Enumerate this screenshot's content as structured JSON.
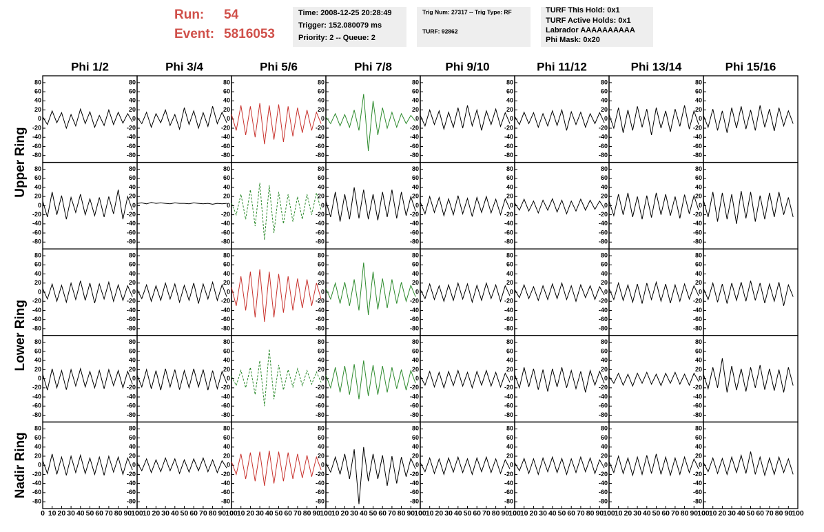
{
  "header": {
    "run_label": "Run:",
    "run": "54",
    "event_label": "Event:",
    "event": "5816053",
    "box1": [
      "Time: 2008-12-25 20:28:49",
      "Trigger: 152.080079 ms",
      "Priority: 2 -- Queue: 2"
    ],
    "box2": [
      "Trig Num: 27317 -- Trig Type: RF",
      "TURF: 92862"
    ],
    "box3": [
      "TURF This Hold: 0x1",
      "TURF Active Holds: 0x1",
      "Labrador AAAAAAAAAA",
      "Phi Mask: 0x20"
    ]
  },
  "chart_data": {
    "type": "line",
    "columns": [
      "Phi 1/2",
      "Phi 3/4",
      "Phi 5/6",
      "Phi 7/8",
      "Phi 9/10",
      "Phi 11/12",
      "Phi 13/14",
      "Phi 15/16"
    ],
    "row_labels": [
      "Upper Ring",
      "Lower Ring",
      "Nadir Ring"
    ],
    "xlim": [
      0,
      100
    ],
    "xticks": [
      0,
      10,
      20,
      30,
      40,
      50,
      60,
      70,
      80,
      90,
      100
    ],
    "ylim": [
      -95,
      95
    ],
    "yticks": [
      -80,
      -60,
      -40,
      -20,
      0,
      20,
      40,
      60,
      80
    ],
    "x": [
      0,
      5,
      10,
      15,
      20,
      25,
      30,
      35,
      40,
      45,
      50,
      55,
      60,
      65,
      70,
      75,
      80,
      85,
      90,
      95
    ],
    "panels": [
      [
        {
          "color": "#000000",
          "values": [
            5,
            -12,
            18,
            -8,
            14,
            -20,
            10,
            -15,
            22,
            -10,
            16,
            -18,
            8,
            -14,
            20,
            -12,
            15,
            -9,
            12,
            -6
          ]
        },
        {
          "color": "#000000",
          "values": [
            4,
            -10,
            15,
            -18,
            12,
            -8,
            20,
            -14,
            10,
            -22,
            25,
            -12,
            18,
            -20,
            14,
            -16,
            28,
            -10,
            15,
            -8
          ]
        },
        {
          "color": "#c8322d",
          "values": [
            10,
            -25,
            30,
            -35,
            28,
            -40,
            35,
            -55,
            30,
            -45,
            32,
            -50,
            28,
            -38,
            25,
            -30,
            20,
            -25,
            15,
            -10
          ]
        },
        {
          "color": "#2e8b2e",
          "values": [
            5,
            -10,
            12,
            -15,
            10,
            -18,
            20,
            -25,
            55,
            -70,
            40,
            -35,
            25,
            -20,
            15,
            -18,
            12,
            -10,
            8,
            -5
          ]
        },
        {
          "color": "#000000",
          "values": [
            8,
            -15,
            20,
            -12,
            18,
            -22,
            15,
            -18,
            25,
            -20,
            30,
            -15,
            20,
            -25,
            18,
            -12,
            22,
            -16,
            14,
            -10
          ]
        },
        {
          "color": "#000000",
          "values": [
            6,
            -12,
            15,
            -10,
            14,
            -18,
            12,
            -15,
            18,
            -14,
            20,
            -25,
            16,
            -12,
            15,
            -18,
            12,
            -10,
            14,
            -8
          ]
        },
        {
          "color": "#000000",
          "values": [
            10,
            -20,
            25,
            -30,
            20,
            -25,
            28,
            -18,
            22,
            -35,
            25,
            -20,
            18,
            -28,
            22,
            -16,
            30,
            -22,
            18,
            -12
          ]
        },
        {
          "color": "#000000",
          "values": [
            8,
            -18,
            22,
            -25,
            18,
            -30,
            25,
            -20,
            28,
            -22,
            20,
            -25,
            30,
            -18,
            22,
            -26,
            25,
            -15,
            18,
            -10
          ]
        }
      ],
      [
        {
          "color": "#000000",
          "values": [
            10,
            -25,
            30,
            -20,
            22,
            -30,
            18,
            -15,
            25,
            -20,
            15,
            -22,
            18,
            -25,
            20,
            -18,
            35,
            -30,
            20,
            -10
          ]
        },
        {
          "color": "#000000",
          "values": [
            5,
            6,
            4,
            7,
            5,
            6,
            5,
            4,
            6,
            5,
            5,
            4,
            6,
            5,
            4,
            5,
            3,
            5,
            4,
            5
          ]
        },
        {
          "color": "#2e8b2e",
          "dashed": true,
          "values": [
            5,
            -20,
            25,
            -30,
            35,
            -45,
            50,
            -75,
            45,
            -60,
            30,
            -40,
            25,
            -35,
            20,
            -30,
            25,
            -20,
            28,
            -10
          ]
        },
        {
          "color": "#000000",
          "values": [
            10,
            -25,
            30,
            -35,
            25,
            -30,
            40,
            -28,
            35,
            -30,
            25,
            -32,
            30,
            -25,
            35,
            -28,
            30,
            -22,
            20,
            -12
          ]
        },
        {
          "color": "#000000",
          "values": [
            8,
            -18,
            20,
            -15,
            18,
            -22,
            15,
            -20,
            22,
            -18,
            16,
            -24,
            18,
            -15,
            20,
            -16,
            14,
            -20,
            15,
            -8
          ]
        },
        {
          "color": "#000000",
          "values": [
            6,
            -10,
            14,
            -12,
            10,
            -16,
            12,
            -10,
            15,
            -14,
            12,
            -18,
            10,
            -12,
            14,
            -10,
            12,
            -8,
            10,
            -6
          ]
        },
        {
          "color": "#000000",
          "values": [
            10,
            -22,
            25,
            -20,
            28,
            -25,
            20,
            -30,
            22,
            -26,
            28,
            -20,
            25,
            -22,
            20,
            -28,
            24,
            -18,
            22,
            -10
          ]
        },
        {
          "color": "#000000",
          "values": [
            12,
            -25,
            30,
            -35,
            28,
            -30,
            25,
            -40,
            32,
            -28,
            30,
            -35,
            22,
            -30,
            28,
            -25,
            30,
            -20,
            18,
            -25
          ]
        }
      ],
      [
        {
          "color": "#000000",
          "values": [
            8,
            -15,
            18,
            -20,
            15,
            -22,
            20,
            -16,
            25,
            -18,
            20,
            -24,
            18,
            -15,
            22,
            -20,
            16,
            -18,
            14,
            -10
          ]
        },
        {
          "color": "#000000",
          "values": [
            6,
            -14,
            16,
            -20,
            14,
            -18,
            20,
            -15,
            18,
            -22,
            15,
            -18,
            20,
            -25,
            18,
            -15,
            22,
            -18,
            16,
            -10
          ]
        },
        {
          "color": "#c8322d",
          "values": [
            10,
            -30,
            35,
            -40,
            45,
            -55,
            50,
            -65,
            45,
            -55,
            40,
            -45,
            35,
            -40,
            30,
            -35,
            28,
            -30,
            20,
            -15
          ]
        },
        {
          "color": "#2e8b2e",
          "values": [
            8,
            -15,
            20,
            -25,
            22,
            -30,
            28,
            -40,
            65,
            -50,
            45,
            -38,
            30,
            -35,
            28,
            -25,
            22,
            -20,
            15,
            -10
          ]
        },
        {
          "color": "#000000",
          "values": [
            6,
            -14,
            18,
            -16,
            14,
            -20,
            16,
            -18,
            20,
            -15,
            18,
            -22,
            15,
            -18,
            20,
            -14,
            16,
            -20,
            14,
            -8
          ]
        },
        {
          "color": "#000000",
          "values": [
            6,
            -12,
            16,
            -14,
            12,
            -18,
            14,
            -16,
            18,
            -14,
            20,
            -16,
            14,
            -20,
            16,
            -12,
            14,
            -16,
            12,
            -6
          ]
        },
        {
          "color": "#000000",
          "values": [
            8,
            -16,
            20,
            -18,
            16,
            -22,
            18,
            -25,
            20,
            -16,
            22,
            -20,
            18,
            -24,
            16,
            -20,
            18,
            -15,
            14,
            -8
          ]
        },
        {
          "color": "#000000",
          "values": [
            8,
            -16,
            20,
            -22,
            18,
            -25,
            20,
            -18,
            22,
            -20,
            25,
            -18,
            20,
            -24,
            18,
            -20,
            22,
            -30,
            16,
            -10
          ]
        }
      ],
      [
        {
          "color": "#000000",
          "values": [
            10,
            -25,
            22,
            -20,
            18,
            -24,
            20,
            -16,
            22,
            -18,
            16,
            -20,
            18,
            -22,
            20,
            -15,
            18,
            -20,
            16,
            -12
          ]
        },
        {
          "color": "#000000",
          "values": [
            8,
            -18,
            20,
            -22,
            18,
            -25,
            22,
            -18,
            20,
            -24,
            18,
            -20,
            22,
            -18,
            20,
            -25,
            18,
            -22,
            16,
            -10
          ]
        },
        {
          "color": "#2e8b2e",
          "dashed": true,
          "values": [
            5,
            -15,
            18,
            -20,
            25,
            -35,
            40,
            -60,
            65,
            -45,
            30,
            -25,
            20,
            -18,
            22,
            -15,
            18,
            -12,
            15,
            -8
          ]
        },
        {
          "color": "#2e8b2e",
          "values": [
            8,
            -20,
            25,
            -30,
            28,
            -35,
            32,
            -45,
            40,
            -38,
            30,
            -35,
            28,
            -30,
            25,
            -22,
            20,
            -25,
            18,
            -10
          ]
        },
        {
          "color": "#000000",
          "values": [
            6,
            -14,
            16,
            -18,
            14,
            -20,
            16,
            -15,
            18,
            -16,
            14,
            -20,
            16,
            -14,
            18,
            -16,
            14,
            -18,
            12,
            -8
          ]
        },
        {
          "color": "#000000",
          "values": [
            10,
            -20,
            25,
            -18,
            22,
            -24,
            20,
            -28,
            22,
            -18,
            25,
            -20,
            18,
            -22,
            16,
            -30,
            18,
            -14,
            16,
            -10
          ]
        },
        {
          "color": "#000000",
          "values": [
            5,
            -10,
            12,
            -14,
            10,
            -16,
            12,
            -10,
            14,
            -12,
            10,
            -15,
            12,
            -10,
            14,
            -12,
            10,
            -14,
            12,
            -6
          ]
        },
        {
          "color": "#000000",
          "values": [
            10,
            -22,
            25,
            -20,
            45,
            -30,
            28,
            -25,
            22,
            -28,
            25,
            -20,
            30,
            -24,
            22,
            -26,
            20,
            -30,
            25,
            -15
          ]
        }
      ],
      [
        {
          "color": "#000000",
          "values": [
            10,
            -18,
            25,
            -20,
            18,
            -22,
            20,
            -16,
            22,
            -18,
            16,
            -20,
            18,
            -22,
            20,
            -15,
            18,
            -20,
            16,
            -10
          ]
        },
        {
          "color": "#000000",
          "values": [
            6,
            -12,
            14,
            -16,
            12,
            -14,
            16,
            -12,
            14,
            -18,
            12,
            -15,
            14,
            -12,
            16,
            -14,
            12,
            -16,
            10,
            -6
          ]
        },
        {
          "color": "#c8322d",
          "values": [
            8,
            -20,
            25,
            -30,
            28,
            -35,
            30,
            -45,
            32,
            -40,
            30,
            -35,
            28,
            -30,
            25,
            -28,
            22,
            -25,
            18,
            -10
          ]
        },
        {
          "color": "#000000",
          "values": [
            5,
            -15,
            18,
            -20,
            25,
            -30,
            35,
            -85,
            40,
            -35,
            25,
            -30,
            22,
            -45,
            20,
            -40,
            18,
            -25,
            15,
            -8
          ]
        },
        {
          "color": "#000000",
          "values": [
            6,
            -14,
            16,
            -18,
            14,
            -20,
            16,
            -15,
            18,
            -16,
            14,
            -20,
            16,
            -14,
            18,
            -16,
            14,
            -18,
            12,
            -8
          ]
        },
        {
          "color": "#000000",
          "values": [
            6,
            -12,
            15,
            -18,
            14,
            -20,
            16,
            -14,
            18,
            -16,
            15,
            -20,
            14,
            -16,
            18,
            -14,
            16,
            -18,
            12,
            -6
          ]
        },
        {
          "color": "#000000",
          "values": [
            8,
            -16,
            20,
            -18,
            16,
            -22,
            18,
            -20,
            22,
            -18,
            25,
            -20,
            18,
            -22,
            16,
            -20,
            18,
            -16,
            14,
            -8
          ]
        },
        {
          "color": "#000000",
          "values": [
            6,
            -14,
            16,
            -18,
            15,
            -20,
            18,
            -16,
            22,
            -18,
            30,
            -20,
            18,
            -22,
            16,
            -20,
            18,
            -16,
            14,
            -20
          ]
        }
      ]
    ]
  }
}
